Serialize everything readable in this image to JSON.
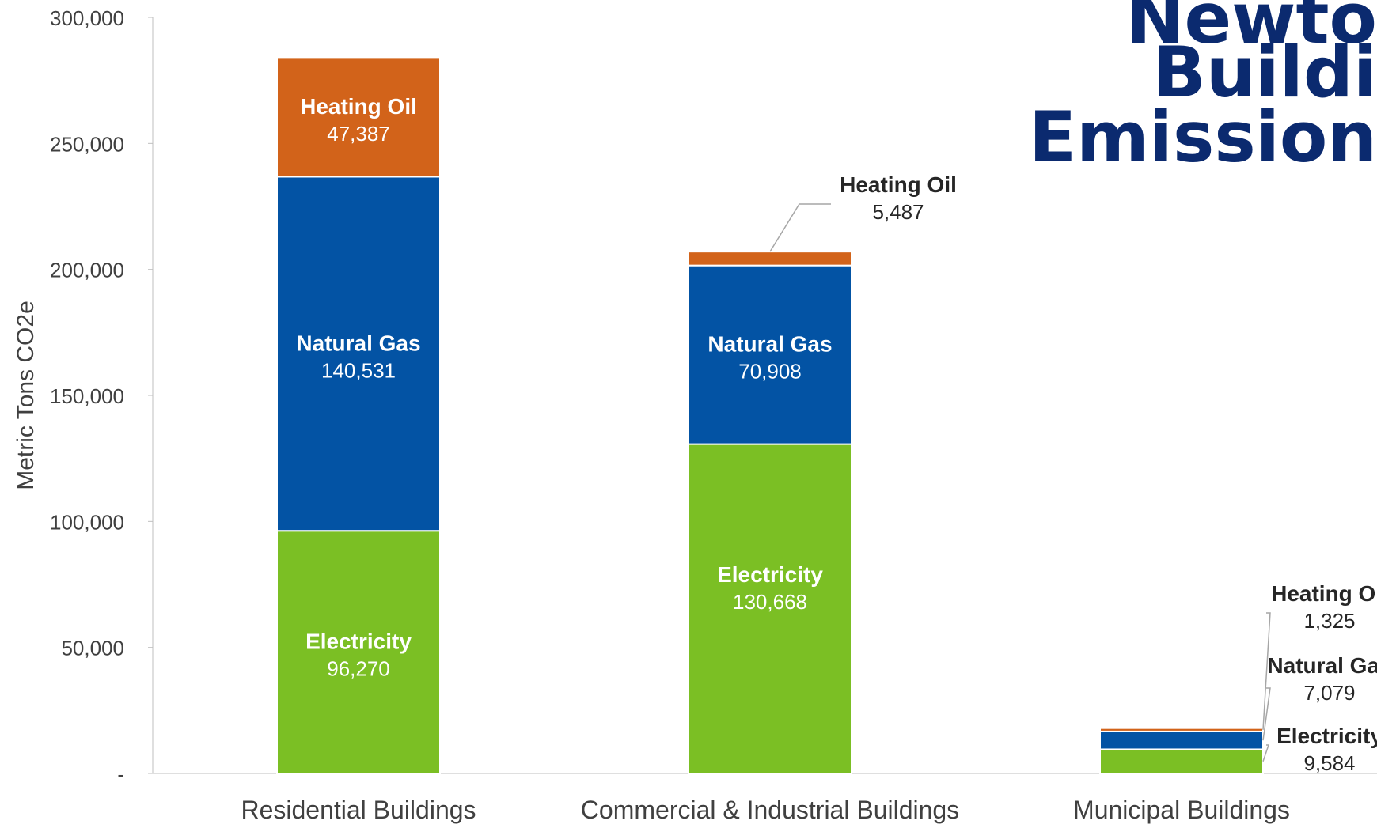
{
  "page": {
    "title_lines": [
      "Newto",
      "Buildi",
      "Emission"
    ]
  },
  "colors": {
    "electricity": "#7bbf24",
    "natural_gas": "#0353a4",
    "heating_oil": "#d2631a",
    "title": "#0b2a6f",
    "axis_text": "#404040"
  },
  "chart_data": {
    "type": "bar",
    "stacked": true,
    "title": "",
    "ylabel": "Metric Tons CO2e",
    "xlabel": "",
    "ylim": [
      0,
      300000
    ],
    "y_ticks": [
      {
        "value": 0,
        "label": "-"
      },
      {
        "value": 50000,
        "label": "50,000"
      },
      {
        "value": 100000,
        "label": "100,000"
      },
      {
        "value": 150000,
        "label": "150,000"
      },
      {
        "value": 200000,
        "label": "200,000"
      },
      {
        "value": 250000,
        "label": "250,000"
      },
      {
        "value": 300000,
        "label": "300,000"
      }
    ],
    "grid": false,
    "legend": "none",
    "categories": [
      "Residential Buildings",
      "Commercial & Industrial Buildings",
      "Municipal Buildings"
    ],
    "series": [
      {
        "name": "Electricity",
        "key": "electricity",
        "values": [
          96270,
          130668,
          9584
        ],
        "value_labels": [
          "96,270",
          "130,668",
          "9,584"
        ]
      },
      {
        "name": "Natural Gas",
        "key": "natural_gas",
        "values": [
          140531,
          70908,
          7079
        ],
        "value_labels": [
          "140,531",
          "70,908",
          "7,079"
        ]
      },
      {
        "name": "Heating Oil",
        "key": "heating_oil",
        "values": [
          47387,
          5487,
          1325
        ],
        "value_labels": [
          "47,387",
          "5,487",
          "1,325"
        ]
      }
    ]
  }
}
